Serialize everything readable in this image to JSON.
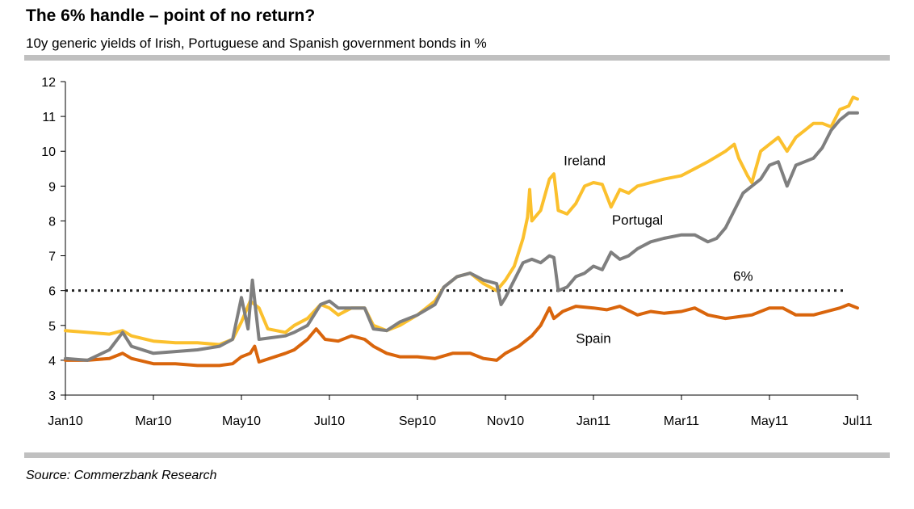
{
  "title": "The 6% handle – point of no return?",
  "subtitle": "10y generic yields of Irish, Portuguese and Spanish government bonds in %",
  "source": "Source: Commerzbank Research",
  "colors": {
    "ireland": "#fbc02d",
    "portugal": "#7f7f7f",
    "spain": "#d9650c",
    "threshold": "#222222"
  },
  "chart_data": {
    "type": "line",
    "title": "The 6% handle – point of no return?",
    "ylim": [
      3,
      12
    ],
    "yticks": [
      "3",
      "4",
      "5",
      "6",
      "7",
      "8",
      "9",
      "10",
      "11",
      "12"
    ],
    "xlim": [
      0,
      18
    ],
    "xtick_labels": [
      "Jan10",
      "Mar10",
      "May10",
      "Jul10",
      "Sep10",
      "Nov10",
      "Jan11",
      "Mar11",
      "May11",
      "Jul11"
    ],
    "xtick_positions": [
      0,
      2,
      4,
      6,
      8,
      10,
      12,
      14,
      16,
      18
    ],
    "x_unit": "months since Jan 2010",
    "reference_line": {
      "value": 6,
      "label": "6%",
      "style": "dotted"
    },
    "series": [
      {
        "name": "Ireland",
        "key": "ireland",
        "points": [
          [
            0,
            4.85
          ],
          [
            0.5,
            4.8
          ],
          [
            1,
            4.75
          ],
          [
            1.3,
            4.85
          ],
          [
            1.5,
            4.7
          ],
          [
            2,
            4.55
          ],
          [
            2.5,
            4.5
          ],
          [
            3,
            4.5
          ],
          [
            3.5,
            4.45
          ],
          [
            3.8,
            4.6
          ],
          [
            4,
            5.1
          ],
          [
            4.2,
            5.7
          ],
          [
            4.4,
            5.5
          ],
          [
            4.6,
            4.9
          ],
          [
            5,
            4.8
          ],
          [
            5.2,
            5.0
          ],
          [
            5.5,
            5.2
          ],
          [
            5.8,
            5.6
          ],
          [
            6,
            5.5
          ],
          [
            6.2,
            5.3
          ],
          [
            6.5,
            5.5
          ],
          [
            6.8,
            5.5
          ],
          [
            7,
            5.0
          ],
          [
            7.3,
            4.85
          ],
          [
            7.6,
            5.0
          ],
          [
            8,
            5.3
          ],
          [
            8.4,
            5.7
          ],
          [
            8.6,
            6.1
          ],
          [
            8.9,
            6.4
          ],
          [
            9.2,
            6.5
          ],
          [
            9.5,
            6.2
          ],
          [
            9.8,
            6.0
          ],
          [
            10,
            6.3
          ],
          [
            10.2,
            6.7
          ],
          [
            10.4,
            7.5
          ],
          [
            10.5,
            8.1
          ],
          [
            10.55,
            8.9
          ],
          [
            10.6,
            8.0
          ],
          [
            10.8,
            8.3
          ],
          [
            11,
            9.2
          ],
          [
            11.1,
            9.35
          ],
          [
            11.2,
            8.3
          ],
          [
            11.4,
            8.2
          ],
          [
            11.6,
            8.5
          ],
          [
            11.8,
            9.0
          ],
          [
            12,
            9.1
          ],
          [
            12.2,
            9.05
          ],
          [
            12.4,
            8.4
          ],
          [
            12.6,
            8.9
          ],
          [
            12.8,
            8.8
          ],
          [
            13,
            9.0
          ],
          [
            13.3,
            9.1
          ],
          [
            13.6,
            9.2
          ],
          [
            14,
            9.3
          ],
          [
            14.3,
            9.5
          ],
          [
            14.6,
            9.7
          ],
          [
            15,
            10.0
          ],
          [
            15.2,
            10.2
          ],
          [
            15.3,
            9.8
          ],
          [
            15.5,
            9.3
          ],
          [
            15.6,
            9.1
          ],
          [
            15.8,
            10.0
          ],
          [
            16,
            10.2
          ],
          [
            16.2,
            10.4
          ],
          [
            16.4,
            10.0
          ],
          [
            16.6,
            10.4
          ],
          [
            16.8,
            10.6
          ],
          [
            17,
            10.8
          ],
          [
            17.2,
            10.8
          ],
          [
            17.4,
            10.7
          ],
          [
            17.6,
            11.2
          ],
          [
            17.8,
            11.3
          ],
          [
            17.9,
            11.55
          ],
          [
            18,
            11.5
          ]
        ]
      },
      {
        "name": "Portugal",
        "key": "portugal",
        "points": [
          [
            0,
            4.05
          ],
          [
            0.5,
            4.0
          ],
          [
            1,
            4.3
          ],
          [
            1.3,
            4.8
          ],
          [
            1.5,
            4.4
          ],
          [
            2,
            4.2
          ],
          [
            2.5,
            4.25
          ],
          [
            3,
            4.3
          ],
          [
            3.5,
            4.4
          ],
          [
            3.8,
            4.6
          ],
          [
            4,
            5.8
          ],
          [
            4.15,
            4.9
          ],
          [
            4.25,
            6.3
          ],
          [
            4.4,
            4.6
          ],
          [
            5,
            4.7
          ],
          [
            5.2,
            4.8
          ],
          [
            5.5,
            5.0
          ],
          [
            5.8,
            5.6
          ],
          [
            6,
            5.7
          ],
          [
            6.2,
            5.5
          ],
          [
            6.5,
            5.5
          ],
          [
            6.8,
            5.5
          ],
          [
            7,
            4.9
          ],
          [
            7.3,
            4.85
          ],
          [
            7.6,
            5.1
          ],
          [
            8,
            5.3
          ],
          [
            8.4,
            5.6
          ],
          [
            8.6,
            6.1
          ],
          [
            8.9,
            6.4
          ],
          [
            9.2,
            6.5
          ],
          [
            9.5,
            6.3
          ],
          [
            9.8,
            6.2
          ],
          [
            9.9,
            5.6
          ],
          [
            10,
            5.8
          ],
          [
            10.2,
            6.3
          ],
          [
            10.4,
            6.8
          ],
          [
            10.6,
            6.9
          ],
          [
            10.8,
            6.8
          ],
          [
            11,
            7.0
          ],
          [
            11.1,
            6.95
          ],
          [
            11.2,
            6.0
          ],
          [
            11.4,
            6.1
          ],
          [
            11.6,
            6.4
          ],
          [
            11.8,
            6.5
          ],
          [
            12,
            6.7
          ],
          [
            12.2,
            6.6
          ],
          [
            12.4,
            7.1
          ],
          [
            12.6,
            6.9
          ],
          [
            12.8,
            7.0
          ],
          [
            13,
            7.2
          ],
          [
            13.3,
            7.4
          ],
          [
            13.6,
            7.5
          ],
          [
            14,
            7.6
          ],
          [
            14.3,
            7.6
          ],
          [
            14.6,
            7.4
          ],
          [
            14.8,
            7.5
          ],
          [
            15,
            7.8
          ],
          [
            15.2,
            8.3
          ],
          [
            15.4,
            8.8
          ],
          [
            15.6,
            9.0
          ],
          [
            15.8,
            9.2
          ],
          [
            16,
            9.6
          ],
          [
            16.2,
            9.7
          ],
          [
            16.4,
            9.0
          ],
          [
            16.6,
            9.6
          ],
          [
            16.8,
            9.7
          ],
          [
            17,
            9.8
          ],
          [
            17.2,
            10.1
          ],
          [
            17.4,
            10.6
          ],
          [
            17.6,
            10.9
          ],
          [
            17.8,
            11.1
          ],
          [
            18,
            11.1
          ]
        ]
      },
      {
        "name": "Spain",
        "key": "spain",
        "points": [
          [
            0,
            4.0
          ],
          [
            0.5,
            4.0
          ],
          [
            1,
            4.05
          ],
          [
            1.3,
            4.2
          ],
          [
            1.5,
            4.05
          ],
          [
            2,
            3.9
          ],
          [
            2.5,
            3.9
          ],
          [
            3,
            3.85
          ],
          [
            3.5,
            3.85
          ],
          [
            3.8,
            3.9
          ],
          [
            4,
            4.1
          ],
          [
            4.2,
            4.2
          ],
          [
            4.3,
            4.4
          ],
          [
            4.4,
            3.95
          ],
          [
            5,
            4.2
          ],
          [
            5.2,
            4.3
          ],
          [
            5.5,
            4.6
          ],
          [
            5.7,
            4.9
          ],
          [
            5.9,
            4.6
          ],
          [
            6.2,
            4.55
          ],
          [
            6.5,
            4.7
          ],
          [
            6.8,
            4.6
          ],
          [
            7,
            4.4
          ],
          [
            7.3,
            4.2
          ],
          [
            7.6,
            4.1
          ],
          [
            8,
            4.1
          ],
          [
            8.4,
            4.05
          ],
          [
            8.8,
            4.2
          ],
          [
            9.2,
            4.2
          ],
          [
            9.5,
            4.05
          ],
          [
            9.8,
            4.0
          ],
          [
            10,
            4.2
          ],
          [
            10.3,
            4.4
          ],
          [
            10.6,
            4.7
          ],
          [
            10.8,
            5.0
          ],
          [
            11,
            5.5
          ],
          [
            11.1,
            5.2
          ],
          [
            11.3,
            5.4
          ],
          [
            11.6,
            5.55
          ],
          [
            12,
            5.5
          ],
          [
            12.3,
            5.45
          ],
          [
            12.6,
            5.55
          ],
          [
            13,
            5.3
          ],
          [
            13.3,
            5.4
          ],
          [
            13.6,
            5.35
          ],
          [
            14,
            5.4
          ],
          [
            14.3,
            5.5
          ],
          [
            14.6,
            5.3
          ],
          [
            15,
            5.2
          ],
          [
            15.3,
            5.25
          ],
          [
            15.6,
            5.3
          ],
          [
            16,
            5.5
          ],
          [
            16.3,
            5.5
          ],
          [
            16.6,
            5.3
          ],
          [
            17,
            5.3
          ],
          [
            17.3,
            5.4
          ],
          [
            17.6,
            5.5
          ],
          [
            17.8,
            5.6
          ],
          [
            18,
            5.5
          ]
        ]
      }
    ],
    "series_labels": [
      {
        "key": "ireland",
        "text": "Ireland",
        "x": 11.8,
        "y": 9.6
      },
      {
        "key": "portugal",
        "text": "Portugal",
        "x": 13.0,
        "y": 7.9
      },
      {
        "key": "spain",
        "text": "Spain",
        "x": 12.0,
        "y": 4.5
      }
    ]
  }
}
